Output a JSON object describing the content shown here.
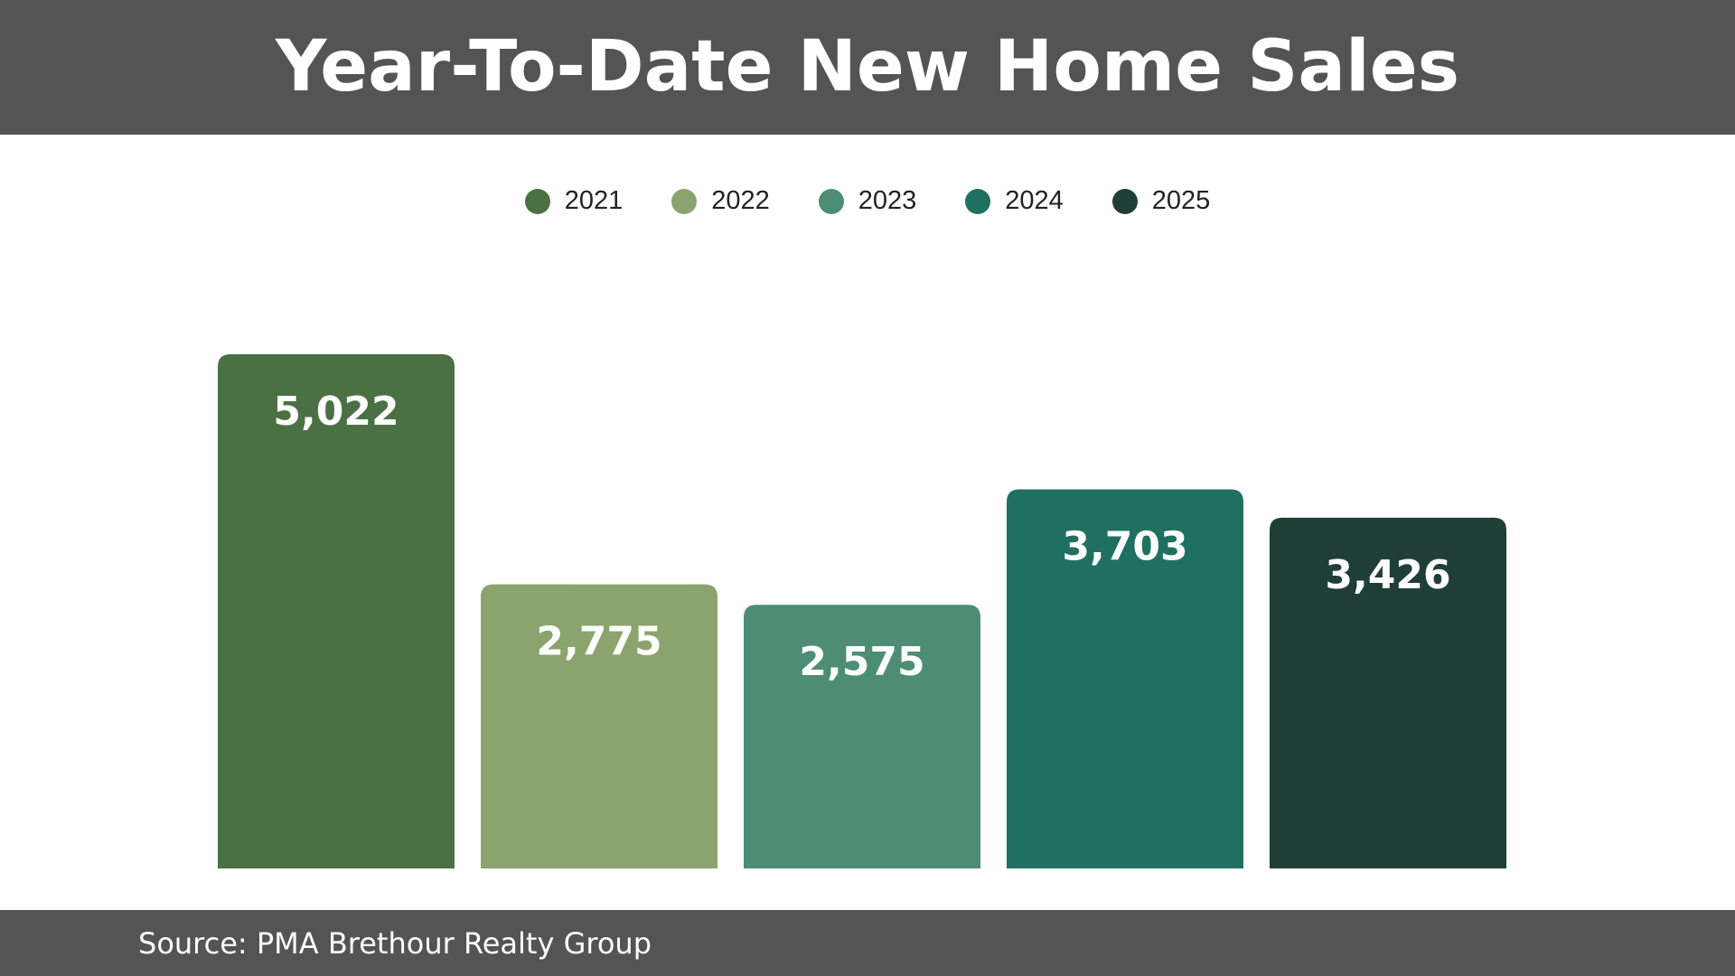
{
  "header": {
    "title": "Year-To-Date New Home Sales"
  },
  "footer": {
    "source": "Source: PMA Brethour Realty Group"
  },
  "chart_data": {
    "type": "bar",
    "title": "Year-To-Date New Home Sales",
    "categories": [
      "2021",
      "2022",
      "2023",
      "2024",
      "2025"
    ],
    "values": [
      5022,
      2775,
      2575,
      3703,
      3426
    ],
    "value_labels": [
      "5,022",
      "2,775",
      "2,575",
      "3,703",
      "3,426"
    ],
    "colors": [
      "#4a7043",
      "#8ba46d",
      "#4d8d75",
      "#207062",
      "#1f3f36"
    ],
    "legend": {
      "placement": "top-center",
      "entries": [
        "2021",
        "2022",
        "2023",
        "2024",
        "2025"
      ]
    },
    "ylim": [
      0,
      5700
    ],
    "grid": false,
    "xlabel": "",
    "ylabel": ""
  }
}
